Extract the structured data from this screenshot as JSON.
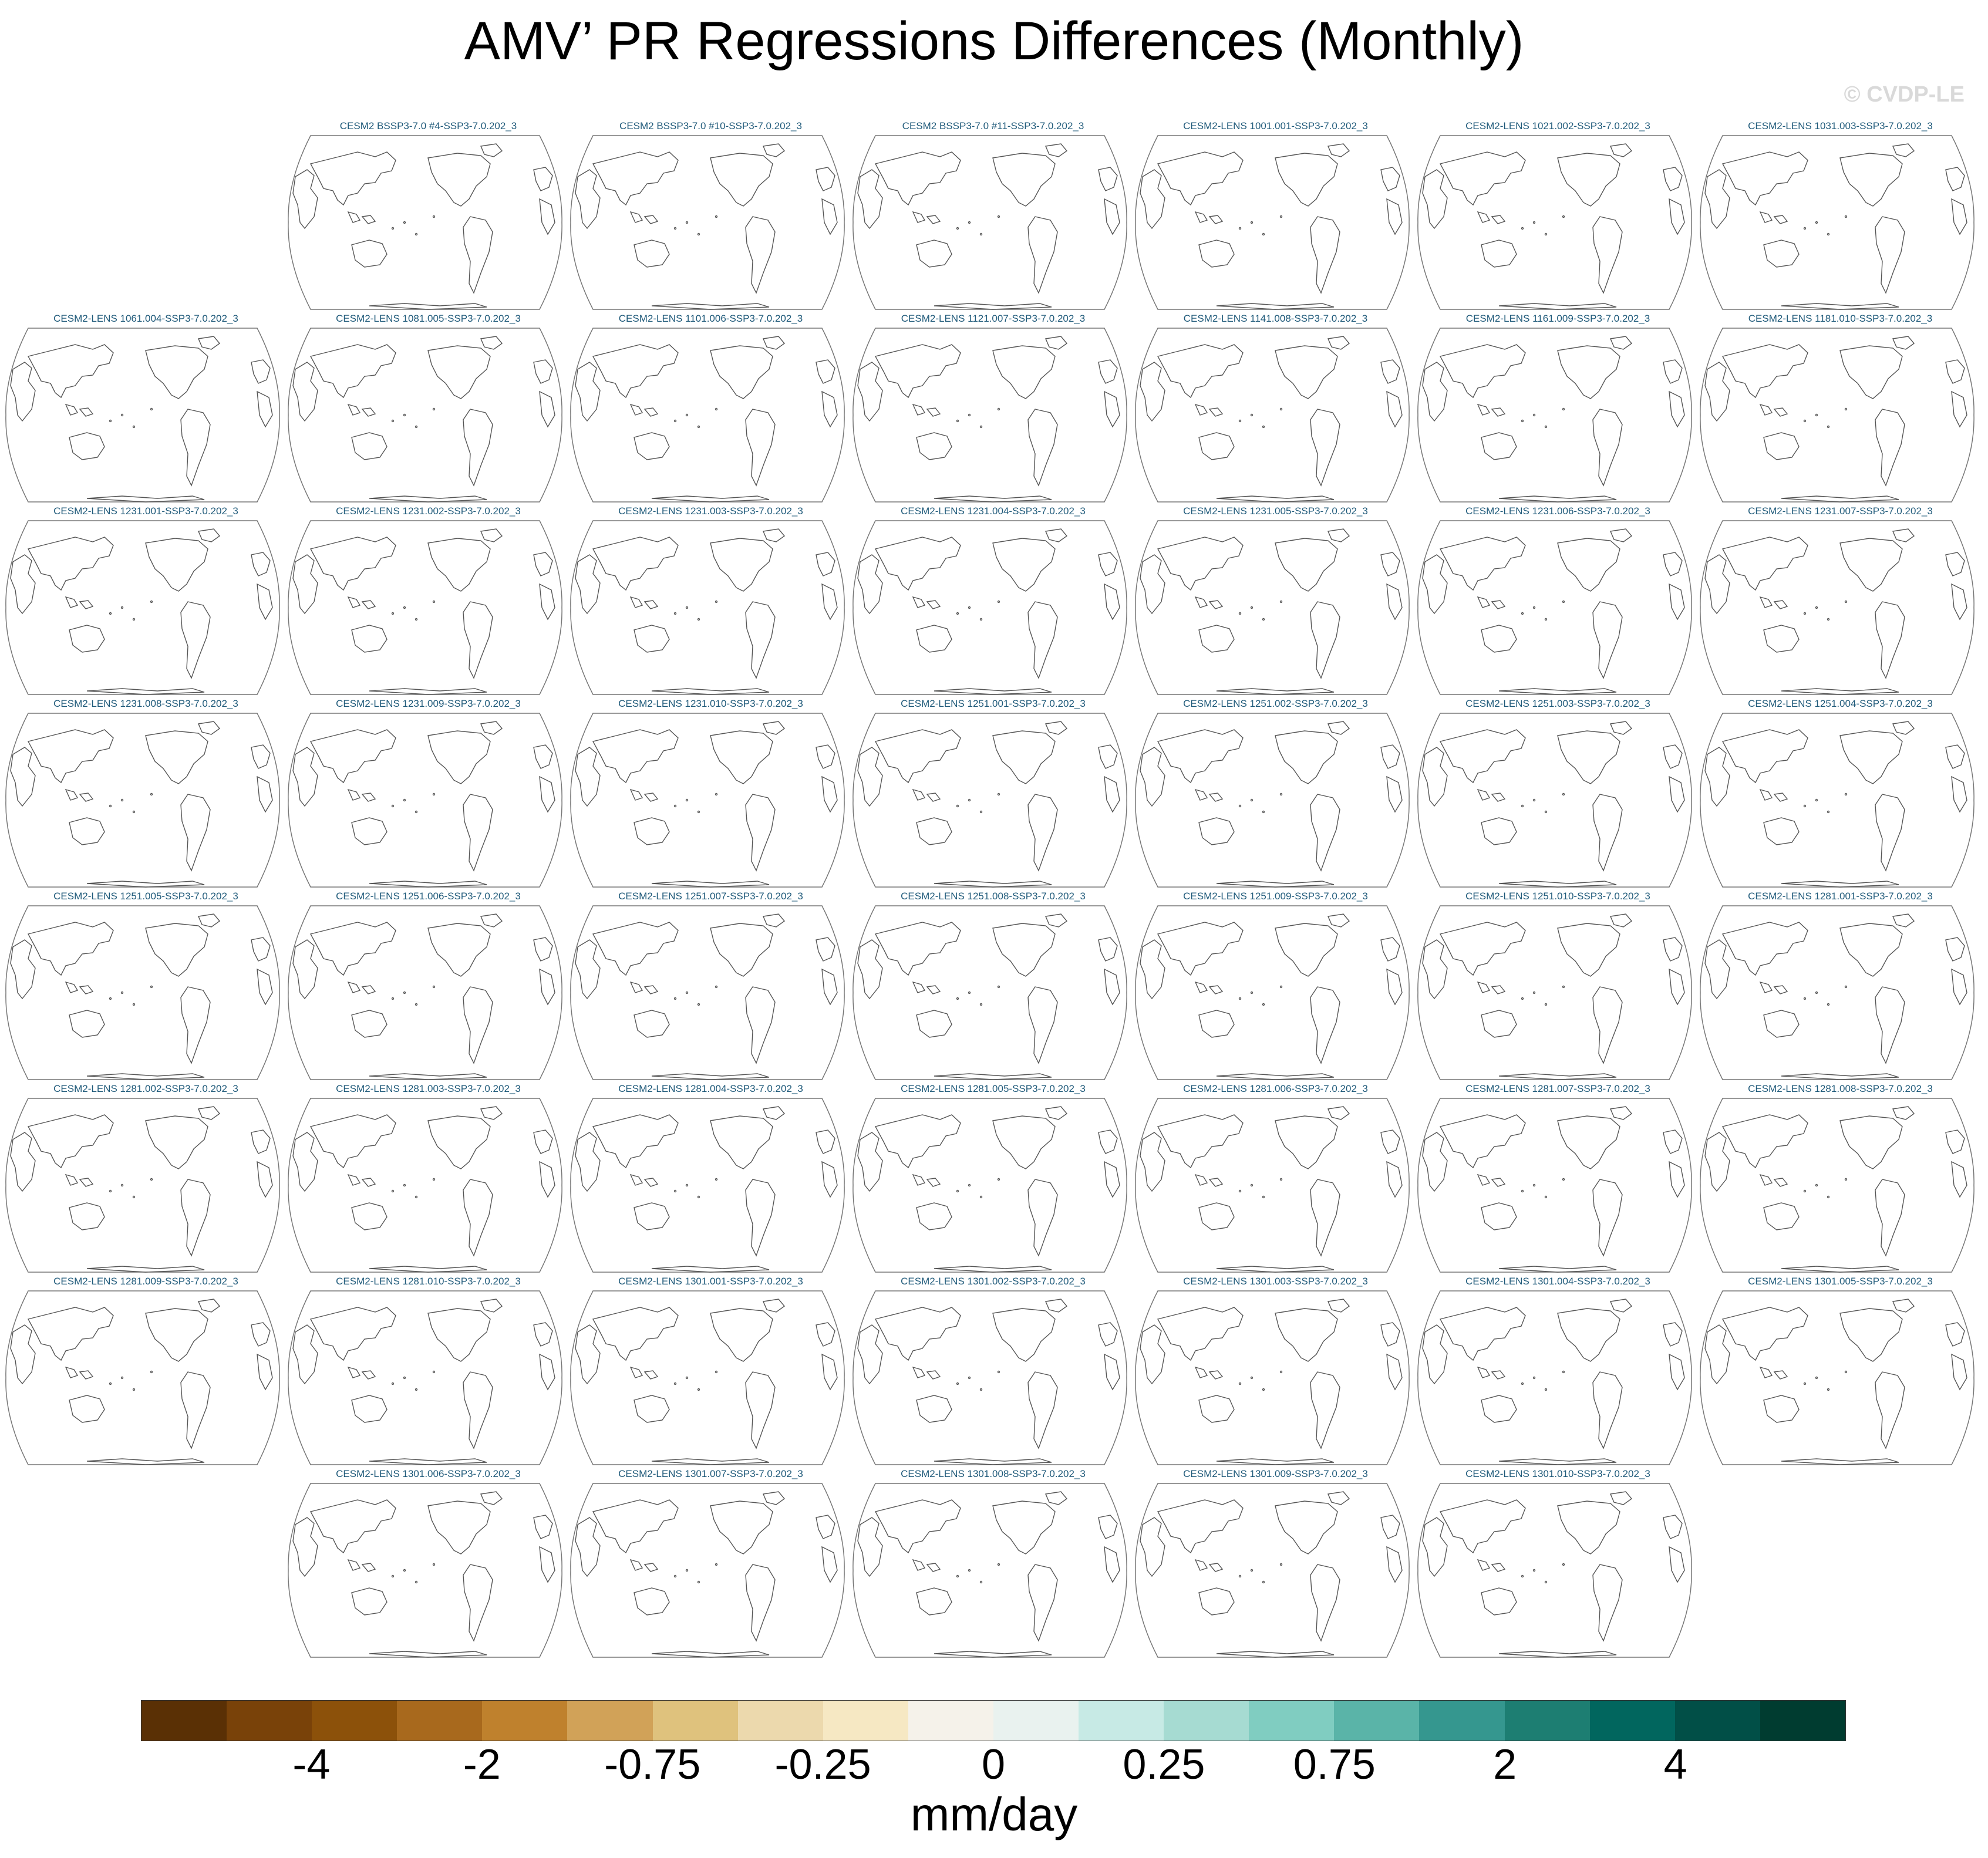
{
  "title": "AMV’ PR Regressions Differences (Monthly)",
  "copyright": "© CVDP-LE",
  "panels": [
    "CESM2 BSSP3-7.0 #4-SSP3-7.0.202_3",
    "CESM2 BSSP3-7.0 #10-SSP3-7.0.202_3",
    "CESM2 BSSP3-7.0 #11-SSP3-7.0.202_3",
    "CESM2-LENS 1001.001-SSP3-7.0.202_3",
    "CESM2-LENS 1021.002-SSP3-7.0.202_3",
    "CESM2-LENS 1031.003-SSP3-7.0.202_3",
    "CESM2-LENS 1061.004-SSP3-7.0.202_3",
    "CESM2-LENS 1081.005-SSP3-7.0.202_3",
    "CESM2-LENS 1101.006-SSP3-7.0.202_3",
    "CESM2-LENS 1121.007-SSP3-7.0.202_3",
    "CESM2-LENS 1141.008-SSP3-7.0.202_3",
    "CESM2-LENS 1161.009-SSP3-7.0.202_3",
    "CESM2-LENS 1181.010-SSP3-7.0.202_3",
    "CESM2-LENS 1231.001-SSP3-7.0.202_3",
    "CESM2-LENS 1231.002-SSP3-7.0.202_3",
    "CESM2-LENS 1231.003-SSP3-7.0.202_3",
    "CESM2-LENS 1231.004-SSP3-7.0.202_3",
    "CESM2-LENS 1231.005-SSP3-7.0.202_3",
    "CESM2-LENS 1231.006-SSP3-7.0.202_3",
    "CESM2-LENS 1231.007-SSP3-7.0.202_3",
    "CESM2-LENS 1231.008-SSP3-7.0.202_3",
    "CESM2-LENS 1231.009-SSP3-7.0.202_3",
    "CESM2-LENS 1231.010-SSP3-7.0.202_3",
    "CESM2-LENS 1251.001-SSP3-7.0.202_3",
    "CESM2-LENS 1251.002-SSP3-7.0.202_3",
    "CESM2-LENS 1251.003-SSP3-7.0.202_3",
    "CESM2-LENS 1251.004-SSP3-7.0.202_3",
    "CESM2-LENS 1251.005-SSP3-7.0.202_3",
    "CESM2-LENS 1251.006-SSP3-7.0.202_3",
    "CESM2-LENS 1251.007-SSP3-7.0.202_3",
    "CESM2-LENS 1251.008-SSP3-7.0.202_3",
    "CESM2-LENS 1251.009-SSP3-7.0.202_3",
    "CESM2-LENS 1251.010-SSP3-7.0.202_3",
    "CESM2-LENS 1281.001-SSP3-7.0.202_3",
    "CESM2-LENS 1281.002-SSP3-7.0.202_3",
    "CESM2-LENS 1281.003-SSP3-7.0.202_3",
    "CESM2-LENS 1281.004-SSP3-7.0.202_3",
    "CESM2-LENS 1281.005-SSP3-7.0.202_3",
    "CESM2-LENS 1281.006-SSP3-7.0.202_3",
    "CESM2-LENS 1281.007-SSP3-7.0.202_3",
    "CESM2-LENS 1281.008-SSP3-7.0.202_3",
    "CESM2-LENS 1281.009-SSP3-7.0.202_3",
    "CESM2-LENS 1281.010-SSP3-7.0.202_3",
    "CESM2-LENS 1301.001-SSP3-7.0.202_3",
    "CESM2-LENS 1301.002-SSP3-7.0.202_3",
    "CESM2-LENS 1301.003-SSP3-7.0.202_3",
    "CESM2-LENS 1301.004-SSP3-7.0.202_3",
    "CESM2-LENS 1301.005-SSP3-7.0.202_3",
    "CESM2-LENS 1301.006-SSP3-7.0.202_3",
    "CESM2-LENS 1301.007-SSP3-7.0.202_3",
    "CESM2-LENS 1301.008-SSP3-7.0.202_3",
    "CESM2-LENS 1301.009-SSP3-7.0.202_3",
    "CESM2-LENS 1301.010-SSP3-7.0.202_3"
  ],
  "colorbar": {
    "units": "mm/day",
    "colors": [
      "#5a3005",
      "#794209",
      "#8c510a",
      "#a8691d",
      "#bf812d",
      "#d1a258",
      "#dfc27d",
      "#ecd9ad",
      "#f6e8c3",
      "#f5f2ea",
      "#e9f2ef",
      "#c7eae5",
      "#a6dbd2",
      "#80cdc1",
      "#5ab4a8",
      "#35978f",
      "#1d7e72",
      "#01665e",
      "#014f47",
      "#003c30"
    ],
    "tick_labels": [
      "-4",
      "-2",
      "-0.75",
      "-0.25",
      "0",
      "0.25",
      "0.75",
      "2",
      "4"
    ]
  },
  "style": {
    "title_color": "#1f5a7a",
    "coastline_color": "#555555",
    "map_outline": "#777777"
  }
}
